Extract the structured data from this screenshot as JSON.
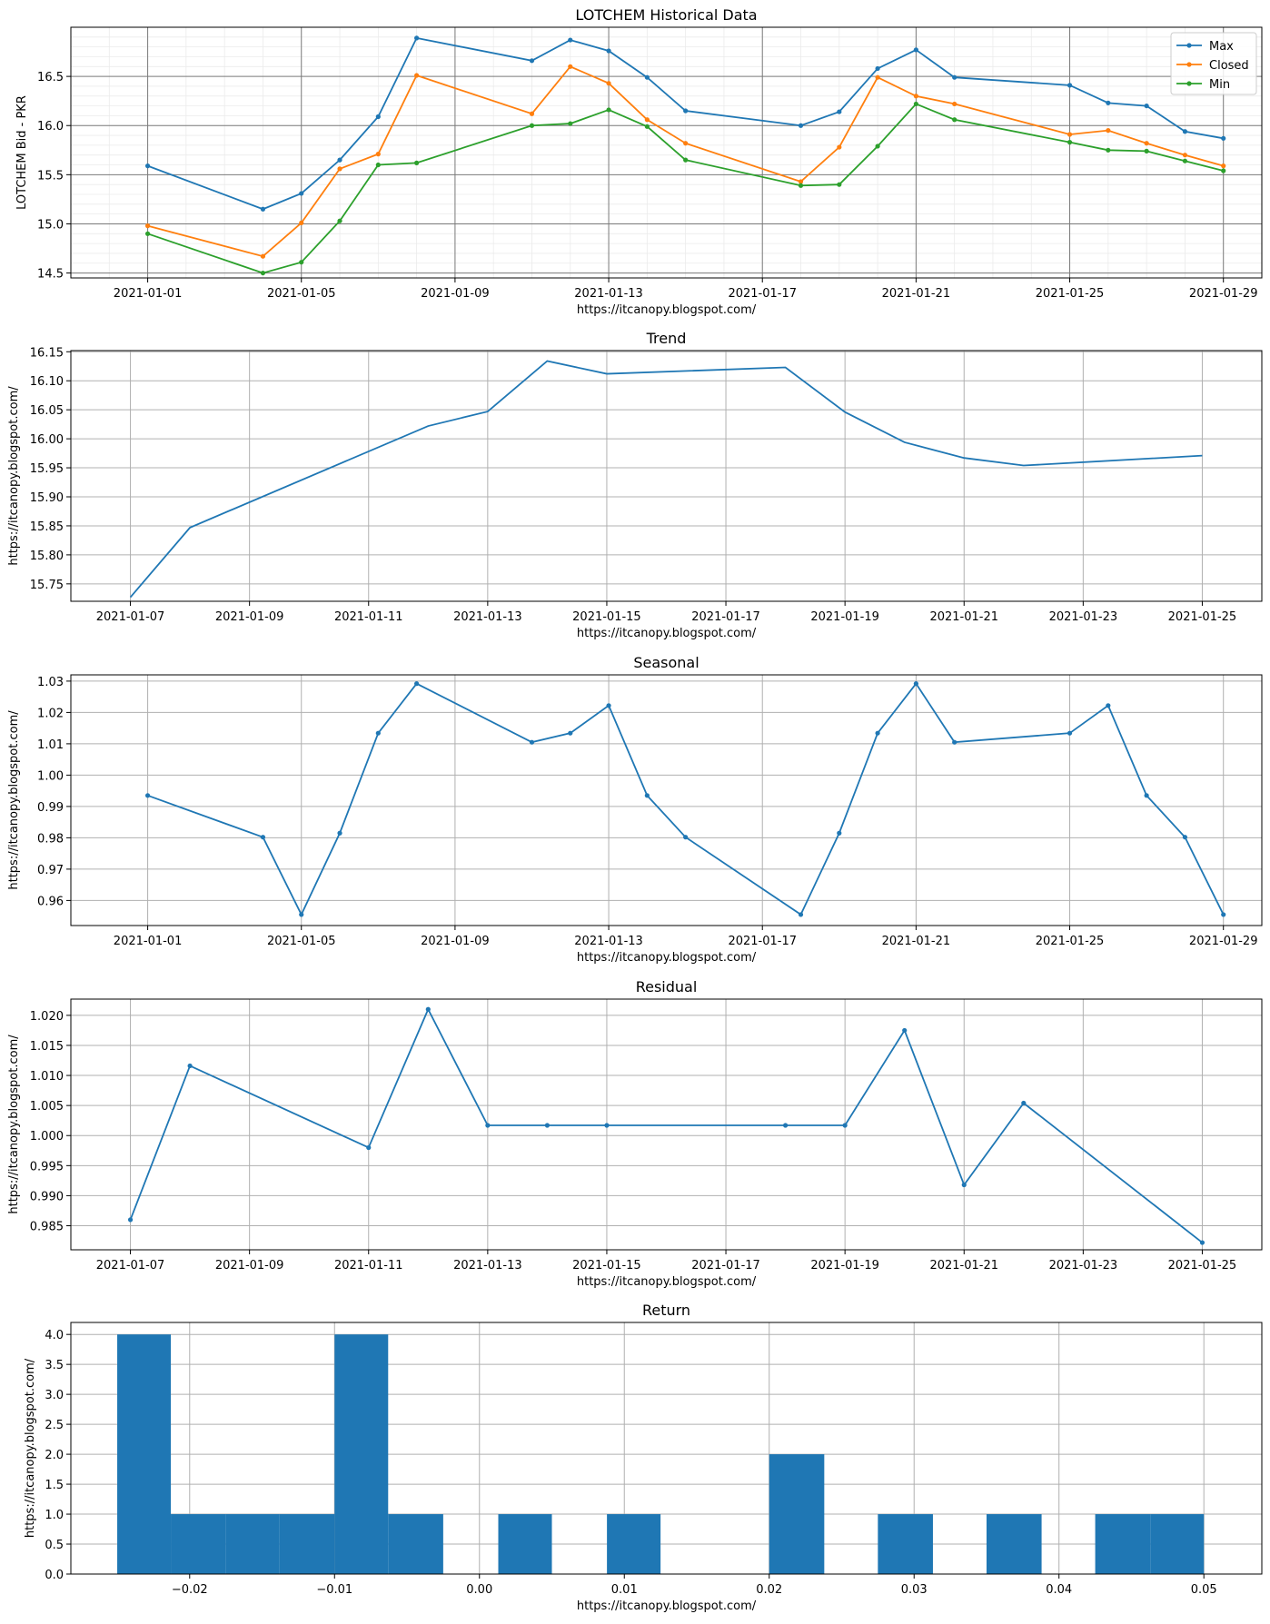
{
  "chart_data": [
    {
      "type": "line",
      "title": "LOTCHEM Historical Data",
      "xlabel": "https://itcanopy.blogspot.com/",
      "ylabel": "LOTCHEM Bid - PKR",
      "x_ticks": [
        "2021-01-01",
        "2021-01-05",
        "2021-01-09",
        "2021-01-13",
        "2021-01-17",
        "2021-01-21",
        "2021-01-25",
        "2021-01-29"
      ],
      "y_ticks": [
        "14.5",
        "15.0",
        "15.5",
        "16.0",
        "16.5"
      ],
      "xlim": [
        "2020-12-30",
        "2021-01-30"
      ],
      "ylim": [
        14.45,
        17.0
      ],
      "grid": "major and minor",
      "legend": "top-right",
      "x": [
        "2021-01-01",
        "2021-01-04",
        "2021-01-05",
        "2021-01-06",
        "2021-01-07",
        "2021-01-08",
        "2021-01-11",
        "2021-01-12",
        "2021-01-13",
        "2021-01-14",
        "2021-01-15",
        "2021-01-18",
        "2021-01-19",
        "2021-01-20",
        "2021-01-21",
        "2021-01-22",
        "2021-01-25",
        "2021-01-26",
        "2021-01-27",
        "2021-01-28",
        "2021-01-29"
      ],
      "series": [
        {
          "name": "Max",
          "color": "#1f77b4",
          "values": [
            15.59,
            15.15,
            15.31,
            15.65,
            16.09,
            16.89,
            16.66,
            16.87,
            16.76,
            16.49,
            16.15,
            16.0,
            16.14,
            16.58,
            16.77,
            16.49,
            16.41,
            16.23,
            16.2,
            15.94,
            15.87
          ]
        },
        {
          "name": "Closed",
          "color": "#ff7f0e",
          "values": [
            14.98,
            14.67,
            15.01,
            15.56,
            15.71,
            16.51,
            16.12,
            16.6,
            16.43,
            16.06,
            15.82,
            15.43,
            15.78,
            16.49,
            16.3,
            16.22,
            15.91,
            15.95,
            15.82,
            15.7,
            15.59
          ]
        },
        {
          "name": "Min",
          "color": "#2ca02c",
          "values": [
            14.9,
            14.5,
            14.61,
            15.03,
            15.6,
            15.62,
            16.0,
            16.02,
            16.16,
            15.99,
            15.65,
            15.39,
            15.4,
            15.79,
            16.22,
            16.06,
            15.83,
            15.75,
            15.74,
            15.64,
            15.54
          ]
        }
      ]
    },
    {
      "type": "line",
      "title": "Trend",
      "xlabel": "https://itcanopy.blogspot.com/",
      "ylabel": "https://itcanopy.blogspot.com/",
      "x_ticks": [
        "2021-01-07",
        "2021-01-09",
        "2021-01-11",
        "2021-01-13",
        "2021-01-15",
        "2021-01-17",
        "2021-01-19",
        "2021-01-21",
        "2021-01-23",
        "2021-01-25"
      ],
      "y_ticks": [
        "15.75",
        "15.80",
        "15.85",
        "15.90",
        "15.95",
        "16.00",
        "16.05",
        "16.10",
        "16.15"
      ],
      "xlim": [
        "2021-01-06",
        "2021-01-26"
      ],
      "ylim": [
        15.72,
        16.152
      ],
      "grid": "on",
      "x": [
        "2021-01-07",
        "2021-01-08",
        "2021-01-12",
        "2021-01-13",
        "2021-01-14",
        "2021-01-15",
        "2021-01-18",
        "2021-01-19",
        "2021-01-20",
        "2021-01-21",
        "2021-01-22",
        "2021-01-25"
      ],
      "series": [
        {
          "color": "#1f77b4",
          "values": [
            15.727,
            15.847,
            16.022,
            16.047,
            16.134,
            16.112,
            16.123,
            16.046,
            15.994,
            15.967,
            15.954,
            15.971
          ]
        }
      ]
    },
    {
      "type": "line",
      "title": "Seasonal",
      "xlabel": "https://itcanopy.blogspot.com/",
      "ylabel": "https://itcanopy.blogspot.com/",
      "x_ticks": [
        "2021-01-01",
        "2021-01-05",
        "2021-01-09",
        "2021-01-13",
        "2021-01-17",
        "2021-01-21",
        "2021-01-25",
        "2021-01-29"
      ],
      "y_ticks": [
        "0.96",
        "0.97",
        "0.98",
        "0.99",
        "1.00",
        "1.01",
        "1.02",
        "1.03"
      ],
      "xlim": [
        "2020-12-30",
        "2021-01-30"
      ],
      "ylim": [
        0.952,
        1.032
      ],
      "grid": "on",
      "x": [
        "2021-01-01",
        "2021-01-04",
        "2021-01-05",
        "2021-01-06",
        "2021-01-07",
        "2021-01-08",
        "2021-01-11",
        "2021-01-12",
        "2021-01-13",
        "2021-01-14",
        "2021-01-15",
        "2021-01-18",
        "2021-01-19",
        "2021-01-20",
        "2021-01-21",
        "2021-01-22",
        "2021-01-25",
        "2021-01-26",
        "2021-01-27",
        "2021-01-28",
        "2021-01-29"
      ],
      "series": [
        {
          "color": "#1f77b4",
          "values": [
            0.9935,
            0.9802,
            0.9555,
            0.9815,
            1.0134,
            1.0292,
            1.0105,
            1.0134,
            1.0222,
            0.9935,
            0.9802,
            0.9555,
            0.9815,
            1.0134,
            1.0292,
            1.0105,
            1.0134,
            1.0222,
            0.9935,
            0.9802,
            0.9555
          ]
        }
      ]
    },
    {
      "type": "line",
      "title": "Residual",
      "xlabel": "https://itcanopy.blogspot.com/",
      "ylabel": "https://itcanopy.blogspot.com/",
      "x_ticks": [
        "2021-01-07",
        "2021-01-09",
        "2021-01-11",
        "2021-01-13",
        "2021-01-15",
        "2021-01-17",
        "2021-01-19",
        "2021-01-21",
        "2021-01-23",
        "2021-01-25"
      ],
      "y_ticks": [
        "0.985",
        "0.990",
        "0.995",
        "1.000",
        "1.005",
        "1.010",
        "1.015",
        "1.020"
      ],
      "xlim": [
        "2021-01-06",
        "2021-01-26"
      ],
      "ylim": [
        0.981,
        1.0227
      ],
      "grid": "on",
      "x": [
        "2021-01-07",
        "2021-01-08",
        "2021-01-11",
        "2021-01-12",
        "2021-01-13",
        "2021-01-14",
        "2021-01-15",
        "2021-01-18",
        "2021-01-19",
        "2021-01-20",
        "2021-01-21",
        "2021-01-22",
        "2021-01-25"
      ],
      "series": [
        {
          "color": "#1f77b4",
          "values": [
            0.986,
            1.0116,
            0.998,
            1.021,
            1.0017,
            1.0017,
            1.0017,
            1.0017,
            1.0017,
            1.0175,
            0.9918,
            1.0054,
            0.9822
          ]
        }
      ]
    },
    {
      "type": "bar",
      "title": "Return",
      "xlabel": "https://itcanopy.blogspot.com/",
      "ylabel": "https://itcanopy.blogspot.com/",
      "x_ticks": [
        "−0.02",
        "−0.01",
        "0.00",
        "0.01",
        "0.02",
        "0.03",
        "0.04",
        "0.05"
      ],
      "y_ticks": [
        "0.0",
        "0.5",
        "1.0",
        "1.5",
        "2.0",
        "2.5",
        "3.0",
        "3.5",
        "4.0"
      ],
      "xlim": [
        -0.0282,
        0.054
      ],
      "ylim": [
        0,
        4.2
      ],
      "grid": "on",
      "bin_edges": [
        -0.025,
        -0.0213,
        -0.0175,
        -0.0138,
        -0.01,
        -0.0063,
        -0.0025,
        0.0013,
        0.005,
        0.0088,
        0.0125,
        0.0163,
        0.02,
        0.0238,
        0.0275,
        0.0313,
        0.035,
        0.0388,
        0.0425,
        0.0463,
        0.05
      ],
      "counts": [
        4,
        1,
        1,
        1,
        4,
        1,
        0,
        1,
        0,
        1,
        0,
        0,
        2,
        0,
        1,
        0,
        1,
        0,
        1,
        1
      ],
      "color": "#1f77b4"
    }
  ]
}
